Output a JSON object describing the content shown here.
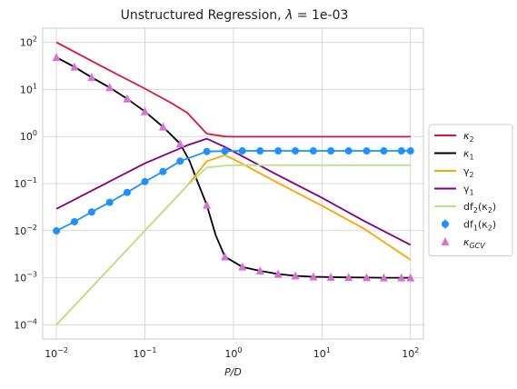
{
  "chart_data": {
    "type": "line",
    "title": "Unstructured Regression, λ = 1e-03",
    "title_main": "Unstructured Regression, ",
    "title_lambda": "λ",
    "title_value": " = 1e-03",
    "xlabel": "P/D",
    "ylabel": "",
    "xscale": "log",
    "yscale": "log",
    "xlim": [
      0.007,
      140
    ],
    "ylim": [
      5e-05,
      200
    ],
    "grid": true,
    "legend_position": "right",
    "x_ticks": [
      {
        "value": 0.01,
        "base": "10",
        "exp": "−2"
      },
      {
        "value": 0.1,
        "base": "10",
        "exp": "−1"
      },
      {
        "value": 1,
        "base": "10",
        "exp": "0"
      },
      {
        "value": 10,
        "base": "10",
        "exp": "1"
      },
      {
        "value": 100,
        "base": "10",
        "exp": "2"
      }
    ],
    "y_ticks": [
      {
        "value": 0.0001,
        "base": "10",
        "exp": "−4"
      },
      {
        "value": 0.001,
        "base": "10",
        "exp": "−3"
      },
      {
        "value": 0.01,
        "base": "10",
        "exp": "−2"
      },
      {
        "value": 0.1,
        "base": "10",
        "exp": "−1"
      },
      {
        "value": 1,
        "base": "10",
        "exp": "0"
      },
      {
        "value": 10,
        "base": "10",
        "exp": "1"
      },
      {
        "value": 100,
        "base": "10",
        "exp": "2"
      }
    ],
    "series": [
      {
        "name": "κ2",
        "legend_main": "κ",
        "legend_sub": "2",
        "style": "line",
        "color": "#dc143c",
        "x": [
          0.01,
          0.03,
          0.1,
          0.2,
          0.3,
          0.5,
          0.8,
          1,
          3,
          10,
          30,
          100
        ],
        "y": [
          100,
          33.5,
          10.4,
          5.1,
          3.2,
          1.15,
          1.0,
          0.99,
          0.99,
          0.99,
          0.99,
          0.99
        ]
      },
      {
        "name": "κ1",
        "legend_main": "κ",
        "legend_sub": "1",
        "style": "line",
        "color": "#000000",
        "x": [
          0.01,
          0.016,
          0.025,
          0.04,
          0.063,
          0.1,
          0.16,
          0.25,
          0.32,
          0.4,
          0.5,
          0.63,
          0.8,
          1.26,
          2,
          3.2,
          5,
          8,
          12.6,
          20,
          32,
          50,
          79,
          100
        ],
        "y": [
          48,
          30,
          18,
          11,
          6.3,
          3.4,
          1.6,
          0.7,
          0.3,
          0.1,
          0.035,
          0.008,
          0.0028,
          0.0017,
          0.0014,
          0.0012,
          0.0011,
          0.00105,
          0.00103,
          0.00102,
          0.00101,
          0.001,
          0.001,
          0.001
        ]
      },
      {
        "name": "γ2",
        "legend_main": "γ",
        "legend_sub": "2",
        "style": "line",
        "color": "#ffa500",
        "x": [
          0.01,
          0.1,
          0.3,
          0.5,
          0.8,
          1,
          3,
          10,
          30,
          100
        ],
        "y": [
          0.0001,
          0.01,
          0.09,
          0.3,
          0.4,
          0.33,
          0.11,
          0.034,
          0.011,
          0.0024
        ]
      },
      {
        "name": "γ1",
        "legend_main": "γ",
        "legend_sub": "1",
        "style": "line",
        "color": "#800080",
        "x": [
          0.01,
          0.1,
          0.3,
          0.5,
          0.8,
          1,
          3,
          10,
          30,
          100
        ],
        "y": [
          0.029,
          0.27,
          0.65,
          0.9,
          0.6,
          0.48,
          0.16,
          0.05,
          0.016,
          0.005
        ]
      },
      {
        "name": "df2(κ2)",
        "legend_main": "df",
        "legend_sub": "2",
        "legend_after": "(κ",
        "legend_sub2": "2",
        "legend_end": ")",
        "style": "line",
        "color": "#b8e38a",
        "x": [
          0.01,
          0.1,
          0.3,
          0.5,
          0.8,
          1,
          3,
          10,
          30,
          100
        ],
        "y": [
          0.0001,
          0.01,
          0.09,
          0.22,
          0.24,
          0.245,
          0.245,
          0.245,
          0.245,
          0.245
        ]
      },
      {
        "name": "df1(κ2)",
        "legend_main": "df",
        "legend_sub": "1",
        "legend_after": "(κ",
        "legend_sub2": "2",
        "legend_end": ")",
        "style": "line+markers",
        "marker": "circle",
        "color": "#1e90ff",
        "x": [
          0.01,
          0.016,
          0.025,
          0.04,
          0.063,
          0.1,
          0.16,
          0.25,
          0.5,
          0.8,
          1.26,
          2,
          3.2,
          5,
          8,
          12.6,
          20,
          32,
          50,
          79,
          100
        ],
        "y": [
          0.0099,
          0.0155,
          0.025,
          0.04,
          0.065,
          0.11,
          0.18,
          0.3,
          0.48,
          0.49,
          0.495,
          0.495,
          0.495,
          0.495,
          0.495,
          0.495,
          0.495,
          0.495,
          0.495,
          0.495,
          0.495
        ]
      },
      {
        "name": "κGCV",
        "legend_main": "κ",
        "legend_sub": "GCV",
        "style": "markers",
        "marker": "triangle",
        "color": "#da70d6",
        "x": [
          0.01,
          0.016,
          0.025,
          0.04,
          0.063,
          0.1,
          0.16,
          0.25,
          0.5,
          0.8,
          1.26,
          2,
          3.2,
          5,
          8,
          12.6,
          20,
          32,
          50,
          79,
          100
        ],
        "y": [
          48,
          30,
          18,
          11,
          6.3,
          3.4,
          1.6,
          0.7,
          0.035,
          0.0028,
          0.0017,
          0.0014,
          0.0012,
          0.0011,
          0.00105,
          0.00103,
          0.00102,
          0.00101,
          0.001,
          0.001,
          0.001
        ]
      }
    ]
  }
}
